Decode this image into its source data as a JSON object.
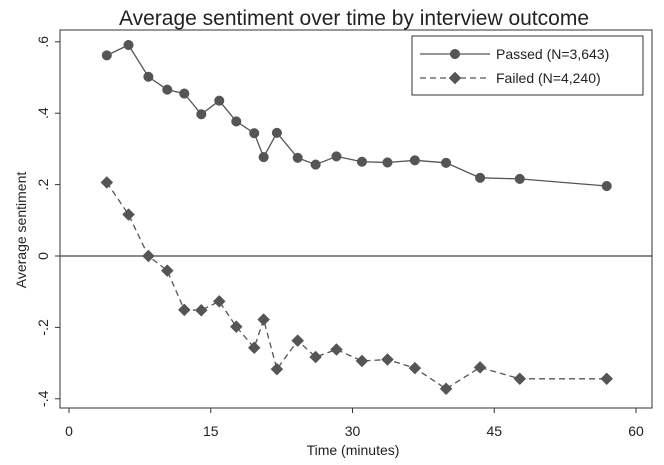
{
  "chart_data": {
    "type": "line",
    "title": "Average sentiment over time by interview outcome",
    "xlabel": "Time (minutes)",
    "ylabel": "Average sentiment",
    "xlim": [
      0,
      60
    ],
    "ylim": [
      -0.4,
      0.6
    ],
    "xticks": [
      0,
      15,
      30,
      45,
      60
    ],
    "xtick_labels": [
      "0",
      "15",
      "30",
      "45",
      "60"
    ],
    "yticks": [
      -0.4,
      -0.2,
      0,
      0.2,
      0.4,
      0.6
    ],
    "ytick_labels": [
      "-.4",
      "-.2",
      "0",
      ".2",
      ".4",
      ".6"
    ],
    "reference_line_y": 0,
    "grid": false,
    "legend_position": "top-right",
    "series": [
      {
        "name": "Passed (N=3,643)",
        "marker": "circle",
        "line_style": "solid",
        "color": "#555555",
        "x": [
          4,
          6.3,
          8.4,
          10.4,
          12.2,
          14,
          15.9,
          17.7,
          19.6,
          20.6,
          22,
          24.2,
          26.1,
          28.3,
          31,
          33.7,
          36.6,
          39.9,
          43.5,
          47.7,
          56.9
        ],
        "y": [
          0.562,
          0.591,
          0.502,
          0.466,
          0.455,
          0.397,
          0.435,
          0.377,
          0.344,
          0.277,
          0.345,
          0.275,
          0.256,
          0.279,
          0.264,
          0.262,
          0.268,
          0.261,
          0.219,
          0.216,
          0.196
        ]
      },
      {
        "name": "Failed  (N=4,240)",
        "marker": "diamond",
        "line_style": "dashed",
        "color": "#555555",
        "x": [
          4,
          6.3,
          8.4,
          10.4,
          12.2,
          14,
          15.9,
          17.7,
          19.6,
          20.6,
          22,
          24.2,
          26.1,
          28.3,
          31,
          33.7,
          36.6,
          39.9,
          43.5,
          47.7,
          56.9
        ],
        "y": [
          0.206,
          0.116,
          0.0,
          -0.041,
          -0.151,
          -0.152,
          -0.127,
          -0.198,
          -0.257,
          -0.178,
          -0.317,
          -0.237,
          -0.283,
          -0.262,
          -0.294,
          -0.29,
          -0.314,
          -0.372,
          -0.312,
          -0.344,
          -0.344
        ]
      }
    ]
  }
}
